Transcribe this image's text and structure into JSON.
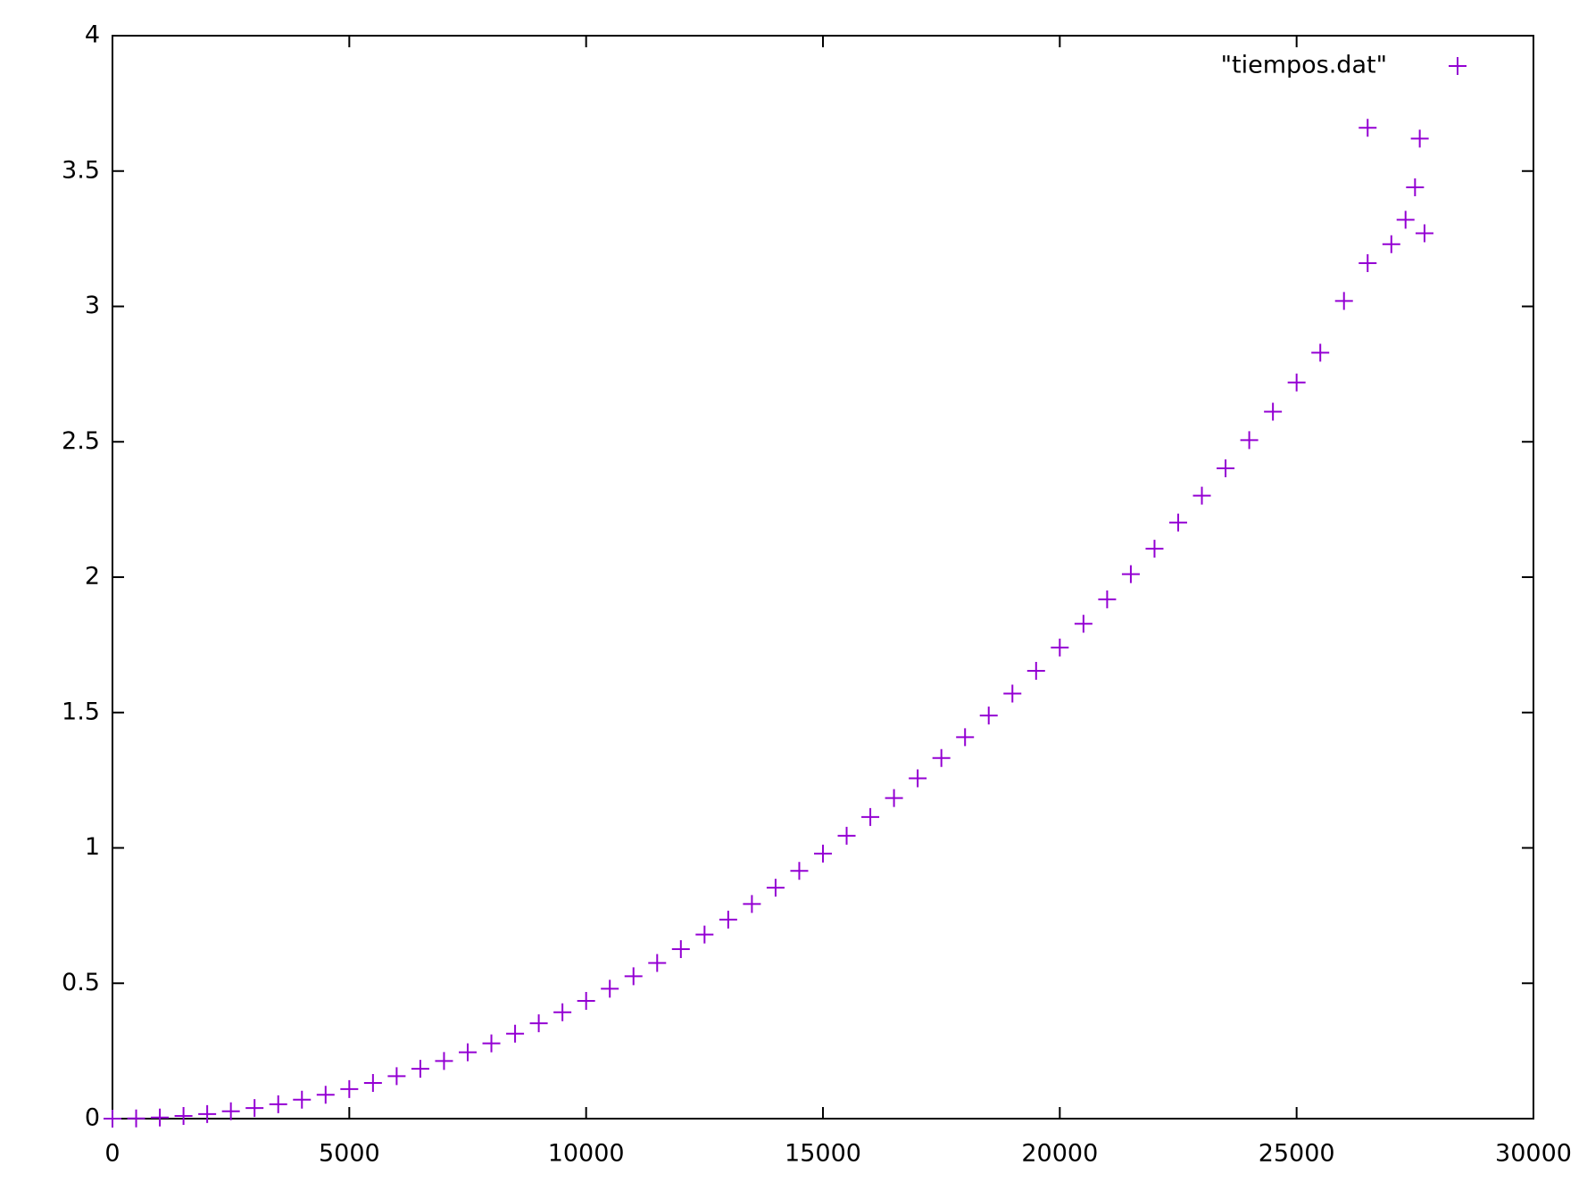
{
  "chart_data": {
    "type": "scatter",
    "xlim": [
      0,
      30000
    ],
    "ylim": [
      0,
      4
    ],
    "xticks": [
      0,
      5000,
      10000,
      15000,
      20000,
      25000,
      30000
    ],
    "yticks": [
      0,
      0.5,
      1,
      1.5,
      2,
      2.5,
      3,
      3.5,
      4
    ],
    "legend": "top-right",
    "series": [
      {
        "name": "\"tiempos.dat\"",
        "color": "#9400d3",
        "x": [
          0,
          500,
          1000,
          1500,
          2000,
          2500,
          3000,
          3500,
          4000,
          4500,
          5000,
          5500,
          6000,
          6500,
          7000,
          7500,
          8000,
          8500,
          9000,
          9500,
          10000,
          10500,
          11000,
          11500,
          12000,
          12500,
          13000,
          13500,
          14000,
          14500,
          15000,
          15500,
          16000,
          16500,
          17000,
          17500,
          18000,
          18500,
          19000,
          19500,
          20000,
          20500,
          21000,
          21500,
          22000,
          22500,
          23000,
          23500,
          24000,
          24500,
          25000,
          25500,
          26000,
          26500,
          26500,
          27000,
          27300,
          27500,
          27600,
          27700
        ],
        "values": [
          0,
          0.001,
          0.004,
          0.01,
          0.017,
          0.027,
          0.039,
          0.053,
          0.07,
          0.088,
          0.109,
          0.132,
          0.157,
          0.184,
          0.213,
          0.245,
          0.278,
          0.314,
          0.352,
          0.393,
          0.435,
          0.48,
          0.526,
          0.575,
          0.626,
          0.68,
          0.735,
          0.793,
          0.853,
          0.915,
          0.979,
          1.045,
          1.114,
          1.184,
          1.257,
          1.332,
          1.409,
          1.489,
          1.57,
          1.654,
          1.74,
          1.828,
          1.918,
          2.011,
          2.105,
          2.202,
          2.301,
          2.402,
          2.506,
          2.611,
          2.719,
          2.829,
          3.02,
          3.16,
          3.66,
          3.23,
          3.32,
          3.44,
          3.62,
          3.27
        ]
      }
    ]
  }
}
